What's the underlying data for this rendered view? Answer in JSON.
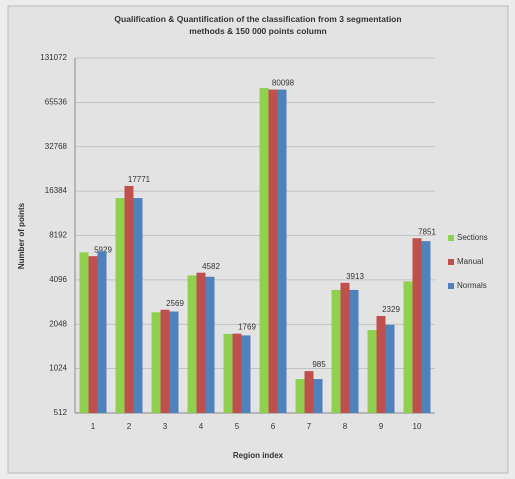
{
  "chart_data": {
    "type": "bar",
    "title": "Qualification & Quantification of the classification from 3 segmentation methods & 150 000 points column",
    "x_label": "Region index",
    "y_label": "Number of points",
    "categories": [
      "1",
      "2",
      "3",
      "4",
      "5",
      "6",
      "7",
      "8",
      "9",
      "10"
    ],
    "series": [
      {
        "name": "Sections",
        "color": "#8fd14f",
        "values": [
          6300,
          14700,
          2470,
          4390,
          1760,
          82000,
          870,
          3500,
          1870,
          4000
        ]
      },
      {
        "name": "Manual",
        "color": "#c0504d",
        "values": [
          5929,
          17771,
          2569,
          4582,
          1769,
          80098,
          985,
          3913,
          2329,
          7851
        ]
      },
      {
        "name": "Normals",
        "color": "#4f81bd",
        "values": [
          6400,
          14700,
          2500,
          4300,
          1720,
          80000,
          870,
          3500,
          2030,
          7500
        ]
      }
    ],
    "data_labels_series": 1,
    "yscale": "log",
    "ylim": [
      512,
      131072
    ],
    "yticks": [
      512,
      1024,
      2048,
      4096,
      8192,
      16384,
      32768,
      65536,
      131072
    ],
    "grid": true,
    "legend": "right"
  }
}
